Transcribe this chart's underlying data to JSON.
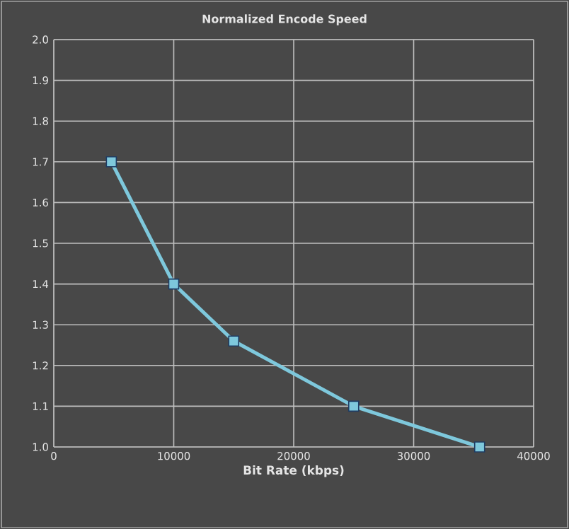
{
  "chart_data": {
    "type": "line",
    "title": "Normalized Encode Speed",
    "xlabel": "Bit Rate (kbps)",
    "x": [
      4800,
      10000,
      15000,
      25000,
      35500
    ],
    "series": [
      {
        "color": "#7ec8dc",
        "values": [
          1.7,
          1.4,
          1.26,
          1.1,
          1.0
        ]
      }
    ],
    "xlim": [
      0,
      40000
    ],
    "xticks": [
      0,
      10000,
      20000,
      30000,
      40000
    ],
    "ylim": [
      1.0,
      2.0
    ],
    "yticks": [
      {
        "value": 1.0,
        "label": "1.0"
      },
      1.1,
      1.2,
      1.3,
      1.4,
      1.5,
      1.6,
      1.7,
      1.8,
      1.9,
      {
        "value": 2.0,
        "label": "2.0"
      }
    ],
    "grid": true,
    "marker": "square",
    "line_style": "solid"
  }
}
